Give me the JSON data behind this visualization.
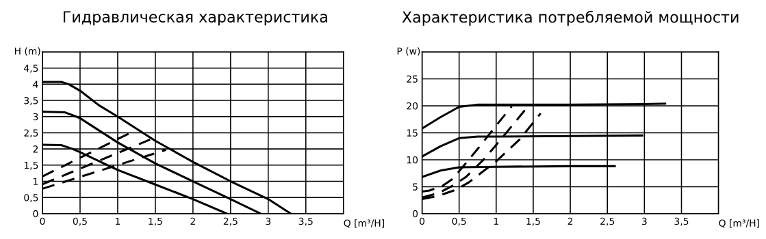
{
  "chart_data": [
    {
      "type": "line",
      "title": "Гидравлическая характеристика",
      "xlabel": "Q [m³/H]",
      "ylabel": "H (m)",
      "xlim": [
        0,
        4
      ],
      "ylim": [
        0,
        5
      ],
      "grid": true,
      "marker": "none",
      "xticks": [
        0,
        {
          "value": 0.5,
          "label": "0,5"
        },
        1,
        {
          "value": 1.5,
          "label": "1,5"
        },
        2,
        {
          "value": 2.5,
          "label": "2,5"
        },
        3,
        {
          "value": 3.5,
          "label": "3,5"
        }
      ],
      "yticks": [
        0,
        {
          "value": 0.5,
          "label": "0,5"
        },
        1,
        {
          "value": 1.5,
          "label": "1,5"
        },
        2,
        {
          "value": 2.5,
          "label": "2,5"
        },
        3,
        {
          "value": 3.5,
          "label": "3,5"
        },
        4,
        {
          "value": 4.5,
          "label": "4,5"
        }
      ],
      "series": [
        {
          "color": "#000000",
          "line_style": "solid",
          "x": [
            0,
            0.25,
            0.35,
            0.5,
            0.75,
            1,
            1.5,
            2,
            2.5,
            3,
            3.3
          ],
          "values": [
            4.07,
            4.07,
            4.0,
            3.8,
            3.35,
            3.0,
            2.25,
            1.6,
            1.0,
            0.45,
            0
          ]
        },
        {
          "color": "#000000",
          "line_style": "solid",
          "x": [
            0,
            0.3,
            0.45,
            0.5,
            1,
            1.5,
            2,
            2.5,
            2.9
          ],
          "values": [
            3.15,
            3.13,
            3.0,
            2.95,
            2.2,
            1.55,
            1.0,
            0.45,
            0
          ]
        },
        {
          "color": "#000000",
          "line_style": "solid",
          "x": [
            0,
            0.25,
            0.4,
            0.5,
            1,
            1.5,
            2,
            2.45
          ],
          "values": [
            2.13,
            2.12,
            2.0,
            1.9,
            1.35,
            0.9,
            0.45,
            0
          ]
        },
        {
          "color": "#000000",
          "line_style": "dashed",
          "x": [
            0,
            1.23
          ],
          "values": [
            1.15,
            2.57
          ]
        },
        {
          "color": "#000000",
          "line_style": "dashed",
          "x": [
            0,
            1.43
          ],
          "values": [
            0.91,
            2.29
          ]
        },
        {
          "color": "#000000",
          "line_style": "dashed",
          "x": [
            0,
            1.64
          ],
          "values": [
            0.77,
            1.97
          ]
        }
      ]
    },
    {
      "type": "line",
      "title": "Характеристика потребляемой мощности",
      "xlabel": "Q [m³/H]",
      "ylabel": "P (w)",
      "xlim": [
        0,
        4
      ],
      "ylim": [
        0,
        30
      ],
      "grid": true,
      "marker": "none",
      "xticks": [
        0,
        {
          "value": 0.5,
          "label": "0,5"
        },
        1,
        {
          "value": 1.5,
          "label": "1,5"
        },
        2,
        {
          "value": 2.5,
          "label": "2,5"
        },
        3,
        {
          "value": 3.5,
          "label": "3,5"
        }
      ],
      "yticks": [
        0,
        5,
        10,
        15,
        20,
        25
      ],
      "series": [
        {
          "color": "#000000",
          "line_style": "solid",
          "x": [
            0,
            0.25,
            0.5,
            0.75,
            1,
            2,
            3,
            3.28
          ],
          "values": [
            15.8,
            17.9,
            19.8,
            20.2,
            20.2,
            20.2,
            20.3,
            20.4
          ]
        },
        {
          "color": "#000000",
          "line_style": "solid",
          "x": [
            0,
            0.25,
            0.5,
            0.75,
            1,
            2,
            2.97
          ],
          "values": [
            10.6,
            12.5,
            14.0,
            14.3,
            14.3,
            14.4,
            14.5
          ]
        },
        {
          "color": "#000000",
          "line_style": "solid",
          "x": [
            0,
            0.25,
            0.5,
            1,
            2,
            2.6
          ],
          "values": [
            6.8,
            8.0,
            8.6,
            8.7,
            8.8,
            8.8
          ]
        },
        {
          "color": "#000000",
          "line_style": "dashed",
          "x": [
            0,
            0.1,
            0.27,
            0.41,
            0.57,
            0.78,
            0.98,
            1.21
          ],
          "values": [
            4.1,
            4.3,
            5.1,
            6.4,
            9.0,
            12.5,
            16.0,
            19.9
          ]
        },
        {
          "color": "#000000",
          "line_style": "dashed",
          "x": [
            0,
            0.22,
            0.43,
            0.6,
            0.85,
            1.13,
            1.43
          ],
          "values": [
            3.0,
            3.8,
            5.3,
            6.9,
            10.3,
            14.9,
            19.9
          ]
        },
        {
          "color": "#000000",
          "line_style": "dashed",
          "x": [
            0,
            0.22,
            0.45,
            0.63,
            1.0,
            1.32,
            1.6
          ],
          "values": [
            2.7,
            3.3,
            4.4,
            5.8,
            9.7,
            13.8,
            18.6
          ]
        }
      ]
    }
  ]
}
